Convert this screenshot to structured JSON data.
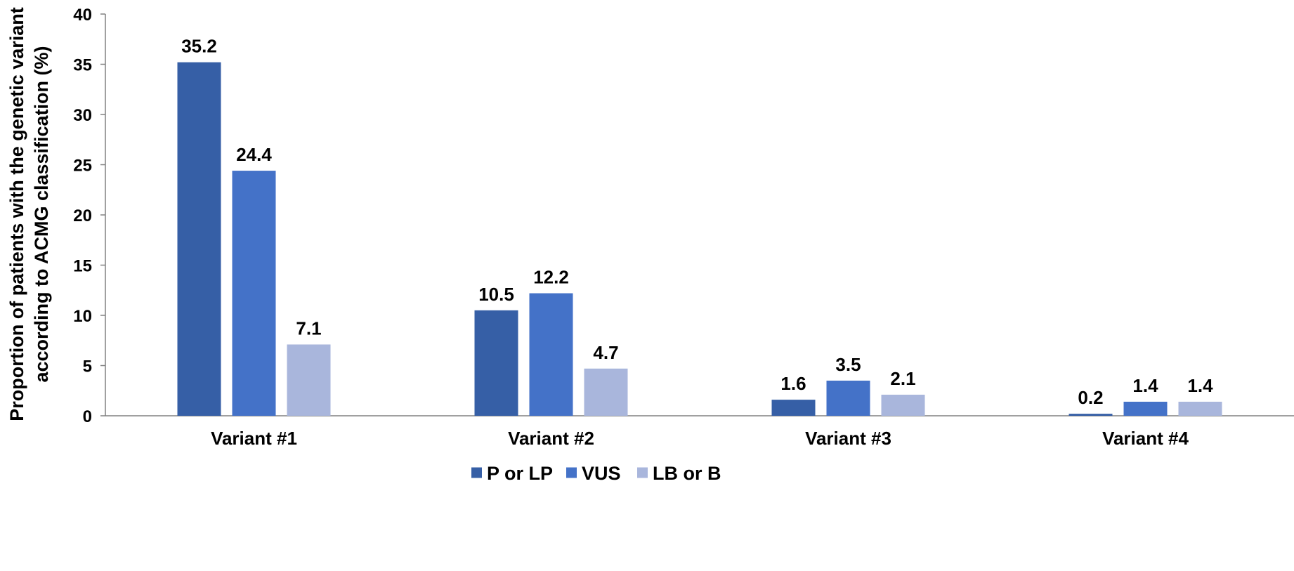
{
  "chart_data": {
    "type": "bar",
    "categories": [
      "Variant #1",
      "Variant #2",
      "Variant #3",
      "Variant #4"
    ],
    "series": [
      {
        "name": "P or LP",
        "color": "#365fa6",
        "values": [
          35.2,
          10.5,
          1.6,
          0.2
        ]
      },
      {
        "name": "VUS",
        "color": "#4472c8",
        "values": [
          24.4,
          12.2,
          3.5,
          1.4
        ]
      },
      {
        "name": "LB or B",
        "color": "#a9b6dc",
        "values": [
          7.1,
          4.7,
          2.1,
          1.4
        ]
      }
    ],
    "data_labels": [
      [
        "35.2",
        "10.5",
        "1.6",
        "0.2"
      ],
      [
        "24.4",
        "12.2",
        "3.5",
        "1.4"
      ],
      [
        "7.1",
        "4.7",
        "2.1",
        "1.4"
      ]
    ],
    "title": "",
    "xlabel": "",
    "ylabel_lines": [
      "Proportion of patients with the genetic variant",
      "according to ACMG classification (%)"
    ],
    "ylim": [
      0,
      40
    ],
    "yticks": [
      0,
      5,
      10,
      15,
      20,
      25,
      30,
      35,
      40
    ],
    "grid": false,
    "legend_position": "bottom-center"
  }
}
